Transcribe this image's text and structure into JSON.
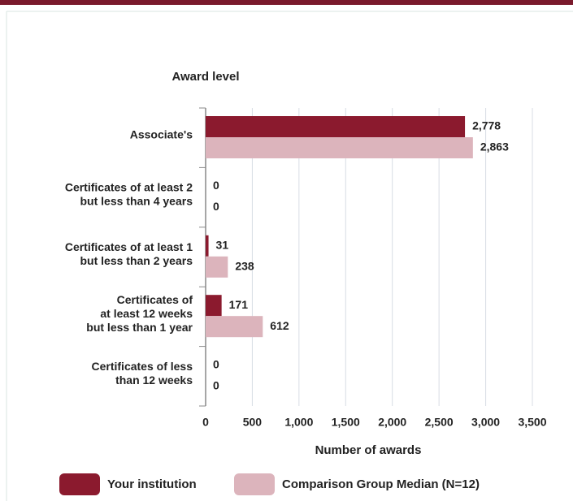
{
  "chart_data": {
    "type": "barh",
    "ylabel": "Award level",
    "xlabel": "Number of awards",
    "categories": [
      "Associate's",
      "Certificates of at least 2\nbut less than 4 years",
      "Certificates of at least 1\nbut  less than 2 years",
      "Certificates of\nat least 12 weeks\nbut less than 1 year",
      "Certificates of less\nthan 12 weeks"
    ],
    "series": [
      {
        "name": "Your institution",
        "color": "#8b1a2e",
        "values": [
          2778,
          0,
          31,
          171,
          0
        ],
        "value_labels": [
          "2,778",
          "0",
          "31",
          "171",
          "0"
        ]
      },
      {
        "name": "Comparison Group Median (N=12)",
        "color": "#dcb4bc",
        "values": [
          2863,
          0,
          238,
          612,
          0
        ],
        "value_labels": [
          "2,863",
          "0",
          "238",
          "612",
          "0"
        ]
      }
    ],
    "xlim": [
      0,
      3500
    ],
    "xticks": [
      0,
      500,
      {
        "value": 1000,
        "label": "1,000"
      },
      {
        "value": 1500,
        "label": "1,500"
      },
      {
        "value": 2000,
        "label": "2,000"
      },
      {
        "value": 2500,
        "label": "2,500"
      },
      {
        "value": 3000,
        "label": "3,000"
      },
      {
        "value": 3500,
        "label": "3,500"
      }
    ],
    "grid": true
  }
}
